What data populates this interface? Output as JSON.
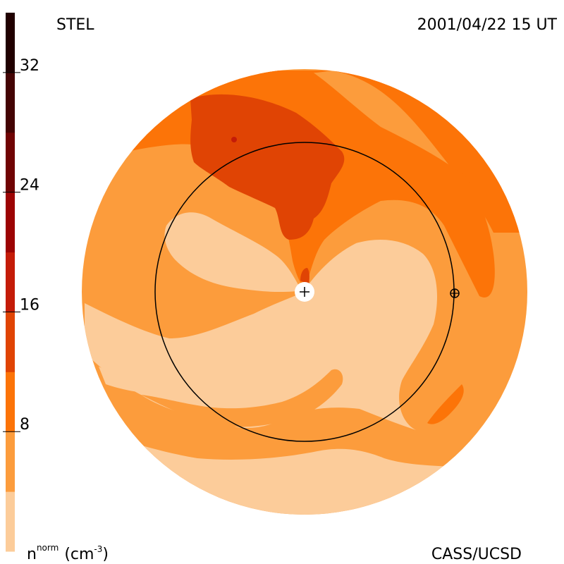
{
  "chart_data": {
    "type": "heatmap",
    "title": "STEL",
    "timestamp": "2001/04/22 15 UT",
    "credit": "CASS/UCSD",
    "colorbar": {
      "label_main": "n",
      "label_sup": "norm",
      "label_unit": "(cm",
      "label_unit_sup": "-3",
      "label_close": ")",
      "range": [
        0,
        36
      ],
      "ticks": [
        {
          "value": 8,
          "label": "8"
        },
        {
          "value": 16,
          "label": "16"
        },
        {
          "value": 24,
          "label": "24"
        },
        {
          "value": 32,
          "label": "32"
        }
      ],
      "levels": [
        {
          "from": 0,
          "to": 4,
          "color": "#fccc9a"
        },
        {
          "from": 4,
          "to": 8,
          "color": "#fc9c3c"
        },
        {
          "from": 8,
          "to": 12,
          "color": "#fc7408"
        },
        {
          "from": 12,
          "to": 16,
          "color": "#e04404"
        },
        {
          "from": 16,
          "to": 20,
          "color": "#c41c08"
        },
        {
          "from": 20,
          "to": 24,
          "color": "#9c0404"
        },
        {
          "from": 24,
          "to": 28,
          "color": "#700404"
        },
        {
          "from": 28,
          "to": 32,
          "color": "#440404"
        },
        {
          "from": 32,
          "to": 36,
          "color": "#200000"
        }
      ]
    },
    "sun_marker": "+",
    "earth_marker": "earth-symbol"
  }
}
